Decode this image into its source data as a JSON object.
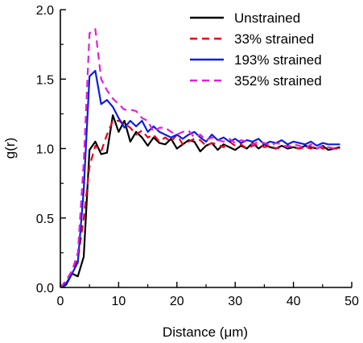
{
  "chart_data": {
    "type": "line",
    "title": "",
    "xlabel": "Distance (μm)",
    "ylabel": "g(r)",
    "xlim": [
      0,
      50
    ],
    "ylim": [
      0.0,
      2.0
    ],
    "xticks": [
      0,
      10,
      20,
      30,
      40,
      50
    ],
    "xtick_labels": [
      "0",
      "10",
      "20",
      "30",
      "40",
      "50"
    ],
    "yticks": [
      0.0,
      0.5,
      1.0,
      1.5,
      2.0
    ],
    "ytick_labels": [
      "0.0",
      "0.5",
      "1.0",
      "1.5",
      "2.0"
    ],
    "grid": false,
    "legend_position": "top-right",
    "series": [
      {
        "name": "Unstrained",
        "color": "#000000",
        "dash": "solid",
        "x": [
          0,
          1,
          2,
          3,
          4,
          5,
          6,
          7,
          8,
          9,
          10,
          11,
          12,
          13,
          14,
          15,
          16,
          17,
          18,
          19,
          20,
          21,
          22,
          23,
          24,
          25,
          26,
          27,
          28,
          29,
          30,
          31,
          32,
          33,
          34,
          35,
          36,
          37,
          38,
          39,
          40,
          41,
          42,
          43,
          44,
          45,
          46,
          47,
          48
        ],
        "y": [
          0.0,
          0.02,
          0.1,
          0.08,
          0.22,
          0.99,
          1.05,
          0.96,
          0.97,
          1.24,
          1.12,
          1.2,
          1.05,
          1.12,
          1.08,
          1.02,
          1.08,
          1.04,
          1.03,
          1.07,
          1.0,
          1.03,
          1.06,
          1.05,
          0.98,
          1.02,
          1.04,
          0.99,
          1.03,
          1.01,
          0.99,
          1.02,
          1.0,
          1.04,
          1.0,
          1.03,
          1.01,
          1.0,
          1.02,
          1.0,
          1.01,
          1.0,
          1.02,
          1.01,
          1.0,
          1.02,
          0.99,
          1.0,
          1.01
        ]
      },
      {
        "name": "33% strained",
        "color": "#e8001c",
        "dash": "dashed",
        "x": [
          0,
          1,
          2,
          3,
          4,
          5,
          6,
          7,
          8,
          9,
          10,
          11,
          12,
          13,
          14,
          15,
          16,
          17,
          18,
          19,
          20,
          21,
          22,
          23,
          24,
          25,
          26,
          27,
          28,
          29,
          30,
          31,
          32,
          33,
          34,
          35,
          36,
          37,
          38,
          39,
          40,
          41,
          42,
          43,
          44,
          45,
          46,
          47,
          48
        ],
        "y": [
          0.0,
          0.05,
          0.12,
          0.2,
          0.5,
          0.87,
          1.02,
          0.98,
          1.1,
          1.2,
          1.2,
          1.18,
          1.15,
          1.1,
          1.13,
          1.08,
          1.1,
          1.05,
          1.08,
          1.05,
          1.1,
          1.03,
          1.05,
          1.07,
          1.06,
          1.02,
          1.04,
          1.03,
          1.01,
          1.05,
          1.02,
          1.03,
          1.0,
          1.02,
          1.03,
          1.01,
          1.02,
          1.0,
          1.01,
          1.02,
          1.01,
          1.0,
          1.01,
          1.0,
          1.02,
          1.0,
          1.01,
          1.0,
          1.0
        ]
      },
      {
        "name": "193% strained",
        "color": "#0a1ee0",
        "dash": "solid",
        "x": [
          0,
          1,
          2,
          3,
          4,
          5,
          6,
          7,
          8,
          9,
          10,
          11,
          12,
          13,
          14,
          15,
          16,
          17,
          18,
          19,
          20,
          21,
          22,
          23,
          24,
          25,
          26,
          27,
          28,
          29,
          30,
          31,
          32,
          33,
          34,
          35,
          36,
          37,
          38,
          39,
          40,
          41,
          42,
          43,
          44,
          45,
          46,
          47,
          48
        ],
        "y": [
          0.0,
          0.03,
          0.1,
          0.18,
          0.7,
          1.52,
          1.56,
          1.32,
          1.35,
          1.3,
          1.22,
          1.15,
          1.2,
          1.16,
          1.2,
          1.12,
          1.16,
          1.12,
          1.1,
          1.08,
          1.1,
          1.07,
          1.1,
          1.12,
          1.08,
          1.05,
          1.1,
          1.06,
          1.08,
          1.05,
          1.07,
          1.04,
          1.06,
          1.05,
          1.07,
          1.03,
          1.05,
          1.04,
          1.06,
          1.03,
          1.05,
          1.04,
          1.03,
          1.05,
          1.02,
          1.04,
          1.03,
          1.03,
          1.03
        ]
      },
      {
        "name": "352% strained",
        "color": "#e020d8",
        "dash": "dashed",
        "x": [
          0,
          1,
          2,
          3,
          4,
          5,
          6,
          7,
          8,
          9,
          10,
          11,
          12,
          13,
          14,
          15,
          16,
          17,
          18,
          19,
          20,
          21,
          22,
          23,
          24,
          25,
          26,
          27,
          28,
          29,
          30,
          31,
          32,
          33,
          34,
          35,
          36,
          37,
          38,
          39,
          40,
          41,
          42,
          43,
          44,
          45,
          46,
          47,
          48
        ],
        "y": [
          0.0,
          0.05,
          0.12,
          0.25,
          0.9,
          1.83,
          1.86,
          1.5,
          1.42,
          1.36,
          1.32,
          1.28,
          1.28,
          1.27,
          1.22,
          1.2,
          1.12,
          1.15,
          1.15,
          1.12,
          1.1,
          1.12,
          1.13,
          1.08,
          1.1,
          1.06,
          1.08,
          1.06,
          1.05,
          1.07,
          1.04,
          1.06,
          1.05,
          1.03,
          1.05,
          1.04,
          1.02,
          1.04,
          1.03,
          1.01,
          1.03,
          1.02,
          1.0,
          1.03,
          1.0,
          1.02,
          1.01,
          1.0,
          1.0
        ]
      }
    ]
  }
}
